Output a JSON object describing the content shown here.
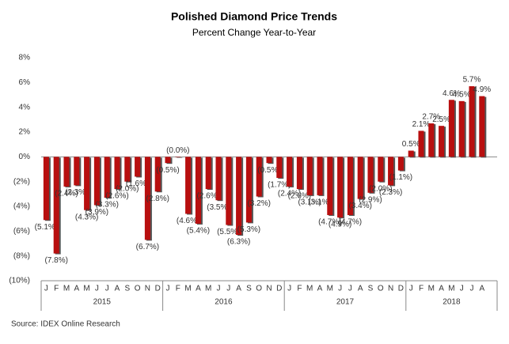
{
  "chart_data": {
    "type": "bar",
    "title": "Polished Diamond Price Trends",
    "subtitle": "Percent Change Year-to-Year",
    "source": "Source: IDEX Online Research",
    "color": "#b80f0f",
    "ylim": [
      -10,
      8
    ],
    "yticks": [
      {
        "value": -10,
        "label": "(10%)"
      },
      {
        "value": -8,
        "label": "(8%)"
      },
      {
        "value": -6,
        "label": "(6%)"
      },
      {
        "value": -4,
        "label": "(4%)"
      },
      {
        "value": -2,
        "label": "(2%)"
      },
      {
        "value": 0,
        "label": "0%"
      },
      {
        "value": 2,
        "label": "2%"
      },
      {
        "value": 4,
        "label": "4%"
      },
      {
        "value": 6,
        "label": "6%"
      },
      {
        "value": 8,
        "label": "8%"
      }
    ],
    "groups": [
      {
        "label": "2015",
        "categories": [
          "J",
          "F",
          "M",
          "A",
          "M",
          "J",
          "J",
          "A",
          "S",
          "O",
          "N",
          "D"
        ],
        "values": [
          -5.1,
          -7.8,
          -2.4,
          -2.3,
          -4.3,
          -3.9,
          -3.3,
          -2.6,
          -2.0,
          -1.6,
          -6.7,
          -2.8
        ],
        "value_labels": [
          "(5.1%)",
          "(7.8%)",
          "(2.4%)",
          "(2.3%)",
          "(4.3%)",
          "(3.9%)",
          "(3.3%)",
          "(2.6%)",
          "(2.0%)",
          "(1.6%)",
          "(6.7%)",
          "(2.8%)"
        ]
      },
      {
        "label": "2016",
        "categories": [
          "J",
          "F",
          "M",
          "A",
          "M",
          "J",
          "J",
          "A",
          "S",
          "O",
          "N",
          "D"
        ],
        "values": [
          -0.5,
          0.0,
          -4.6,
          -5.4,
          -2.6,
          -3.5,
          -5.5,
          -6.3,
          -5.3,
          -3.2,
          -0.5,
          -1.7
        ],
        "value_labels": [
          "(0.5%)",
          "(0.0%)",
          "(4.6%)",
          "(5.4%)",
          "(2.6%)",
          "(3.5%)",
          "(5.5%)",
          "(6.3%)",
          "(5.3%)",
          "(3.2%)",
          "(0.5%)",
          "(1.7%)"
        ]
      },
      {
        "label": "2017",
        "categories": [
          "J",
          "F",
          "M",
          "A",
          "M",
          "J",
          "J",
          "A",
          "S",
          "O",
          "N",
          "D"
        ],
        "values": [
          -2.4,
          -2.6,
          -3.1,
          -3.1,
          -4.7,
          -4.9,
          -4.7,
          -3.4,
          -2.9,
          -2.0,
          -2.3,
          -1.1
        ],
        "value_labels": [
          "(2.4%)",
          "(2.6%)",
          "(3.1%)",
          "(3.1%)",
          "(4.7%)",
          "(4.9%)",
          "(4.7%)",
          "(3.4%)",
          "(2.9%)",
          "(2.0%)",
          "(2.3%)",
          "(1.1%)"
        ]
      },
      {
        "label": "2018",
        "categories": [
          "J",
          "F",
          "M",
          "A",
          "M",
          "J",
          "J",
          "A"
        ],
        "values": [
          0.5,
          2.1,
          2.7,
          2.5,
          4.6,
          4.5,
          5.7,
          4.9
        ],
        "value_labels": [
          "0.5%",
          "2.1%",
          "2.7%",
          "2.5%",
          "4.6%",
          "4.5%",
          "5.7%",
          "4.9%"
        ]
      }
    ]
  }
}
